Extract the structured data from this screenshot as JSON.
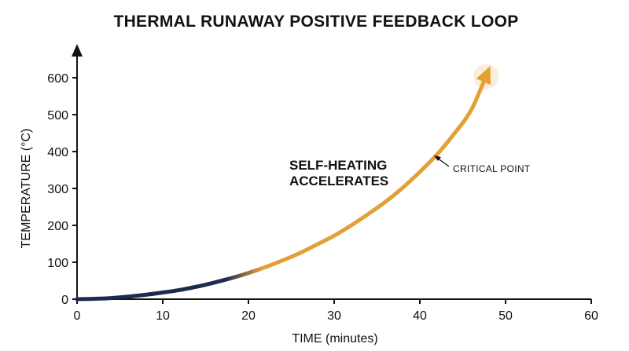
{
  "chart_data": {
    "type": "line",
    "title": "THERMAL RUNAWAY POSITIVE FEEDBACK LOOP",
    "xlabel": "TIME (minutes)",
    "ylabel": "TEMPERATURE (°C)",
    "xlim": [
      0,
      60
    ],
    "ylim": [
      0,
      600
    ],
    "x_ticks": [
      "0",
      "10",
      "20",
      "30",
      "40",
      "50",
      "60"
    ],
    "y_ticks": [
      "0",
      "100",
      "200",
      "300",
      "400",
      "500",
      "600"
    ],
    "grid": false,
    "series": [
      {
        "x": [
          0,
          2,
          4,
          6,
          8,
          10,
          12,
          14,
          16,
          18,
          20,
          22,
          24,
          26,
          28,
          30,
          32,
          34,
          36,
          38,
          40,
          42,
          44,
          46,
          48
        ],
        "y": [
          0,
          1,
          3,
          7,
          12,
          18,
          25,
          34,
          45,
          57,
          71,
          87,
          105,
          125,
          148,
          172,
          200,
          231,
          264,
          302,
          345,
          392,
          448,
          513,
          620
        ]
      }
    ],
    "colors": {
      "cool": "#1b2a4e",
      "hot": "#e2a035",
      "axis": "#111111"
    },
    "annotations": [
      {
        "text_lines": [
          "SELF-HEATING",
          "ACCELERATES"
        ]
      },
      {
        "text": "CRITICAL POINT",
        "x": 41,
        "y": 392
      }
    ]
  }
}
